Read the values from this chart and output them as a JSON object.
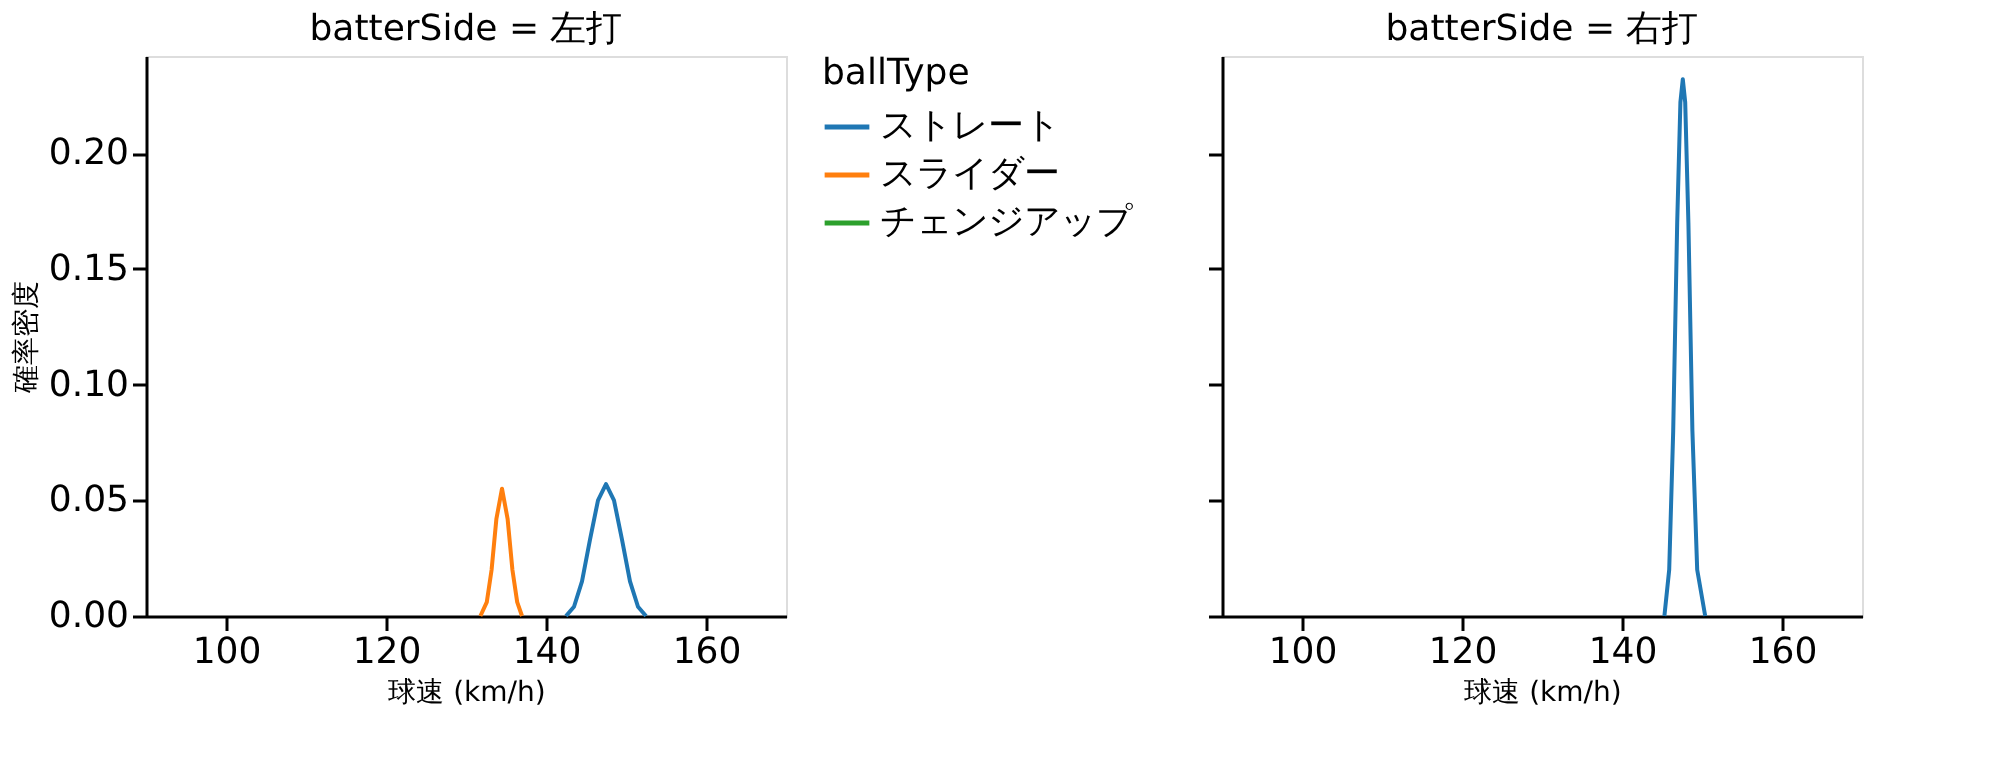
{
  "chart_data": [
    {
      "type": "line",
      "title": "batterSide = 左打",
      "xlabel": "球速 (km/h)",
      "ylabel": "確率密度",
      "xlim": [
        90,
        170
      ],
      "xticks": [
        100,
        120,
        140,
        160
      ],
      "ylim": [
        0,
        0.242
      ],
      "yticks": [
        {
          "value": 0,
          "label": "0.00"
        },
        {
          "value": 0.05,
          "label": "0.05"
        },
        {
          "value": 0.1,
          "label": "0.10"
        },
        {
          "value": 0.15,
          "label": "0.15"
        },
        {
          "value": 0.2,
          "label": "0.20"
        }
      ],
      "legend": "right",
      "legend_title": "ballType",
      "series": [
        {
          "name": "ストレート",
          "color": "#1f77b4",
          "x": [
            142.5,
            143.5,
            144.5,
            145.5,
            146.5,
            147.5,
            148.5,
            149.5,
            150.5,
            151.5,
            152.5
          ],
          "values": [
            0.0,
            0.004,
            0.015,
            0.033,
            0.05,
            0.057,
            0.05,
            0.033,
            0.015,
            0.004,
            0.0
          ]
        },
        {
          "name": "スライダー",
          "color": "#ff7f0e",
          "x": [
            131.8,
            132.6,
            133.2,
            133.8,
            134.5,
            135.2,
            135.8,
            136.4,
            137.0
          ],
          "values": [
            0.0,
            0.006,
            0.02,
            0.042,
            0.055,
            0.042,
            0.02,
            0.006,
            0.0
          ]
        },
        {
          "name": "チェンジアップ",
          "color": "#2ca02c"
        }
      ]
    },
    {
      "type": "line",
      "title": "batterSide = 右打",
      "xlabel": "球速 (km/h)",
      "xlim": [
        90,
        170
      ],
      "xticks": [
        100,
        120,
        140,
        160
      ],
      "ylim": [
        0,
        0.242
      ],
      "yticks": [
        0,
        0.05,
        0.1,
        0.15,
        0.2
      ],
      "tick_labels": "x",
      "series": [
        {
          "color": "#1f77b4",
          "x": [
            145.3,
            145.9,
            146.4,
            146.9,
            147.3,
            147.6,
            147.9,
            148.3,
            148.8,
            149.4,
            150.4
          ],
          "values": [
            0.0,
            0.02,
            0.08,
            0.17,
            0.222,
            0.232,
            0.222,
            0.17,
            0.08,
            0.02,
            0.0
          ]
        }
      ]
    }
  ]
}
